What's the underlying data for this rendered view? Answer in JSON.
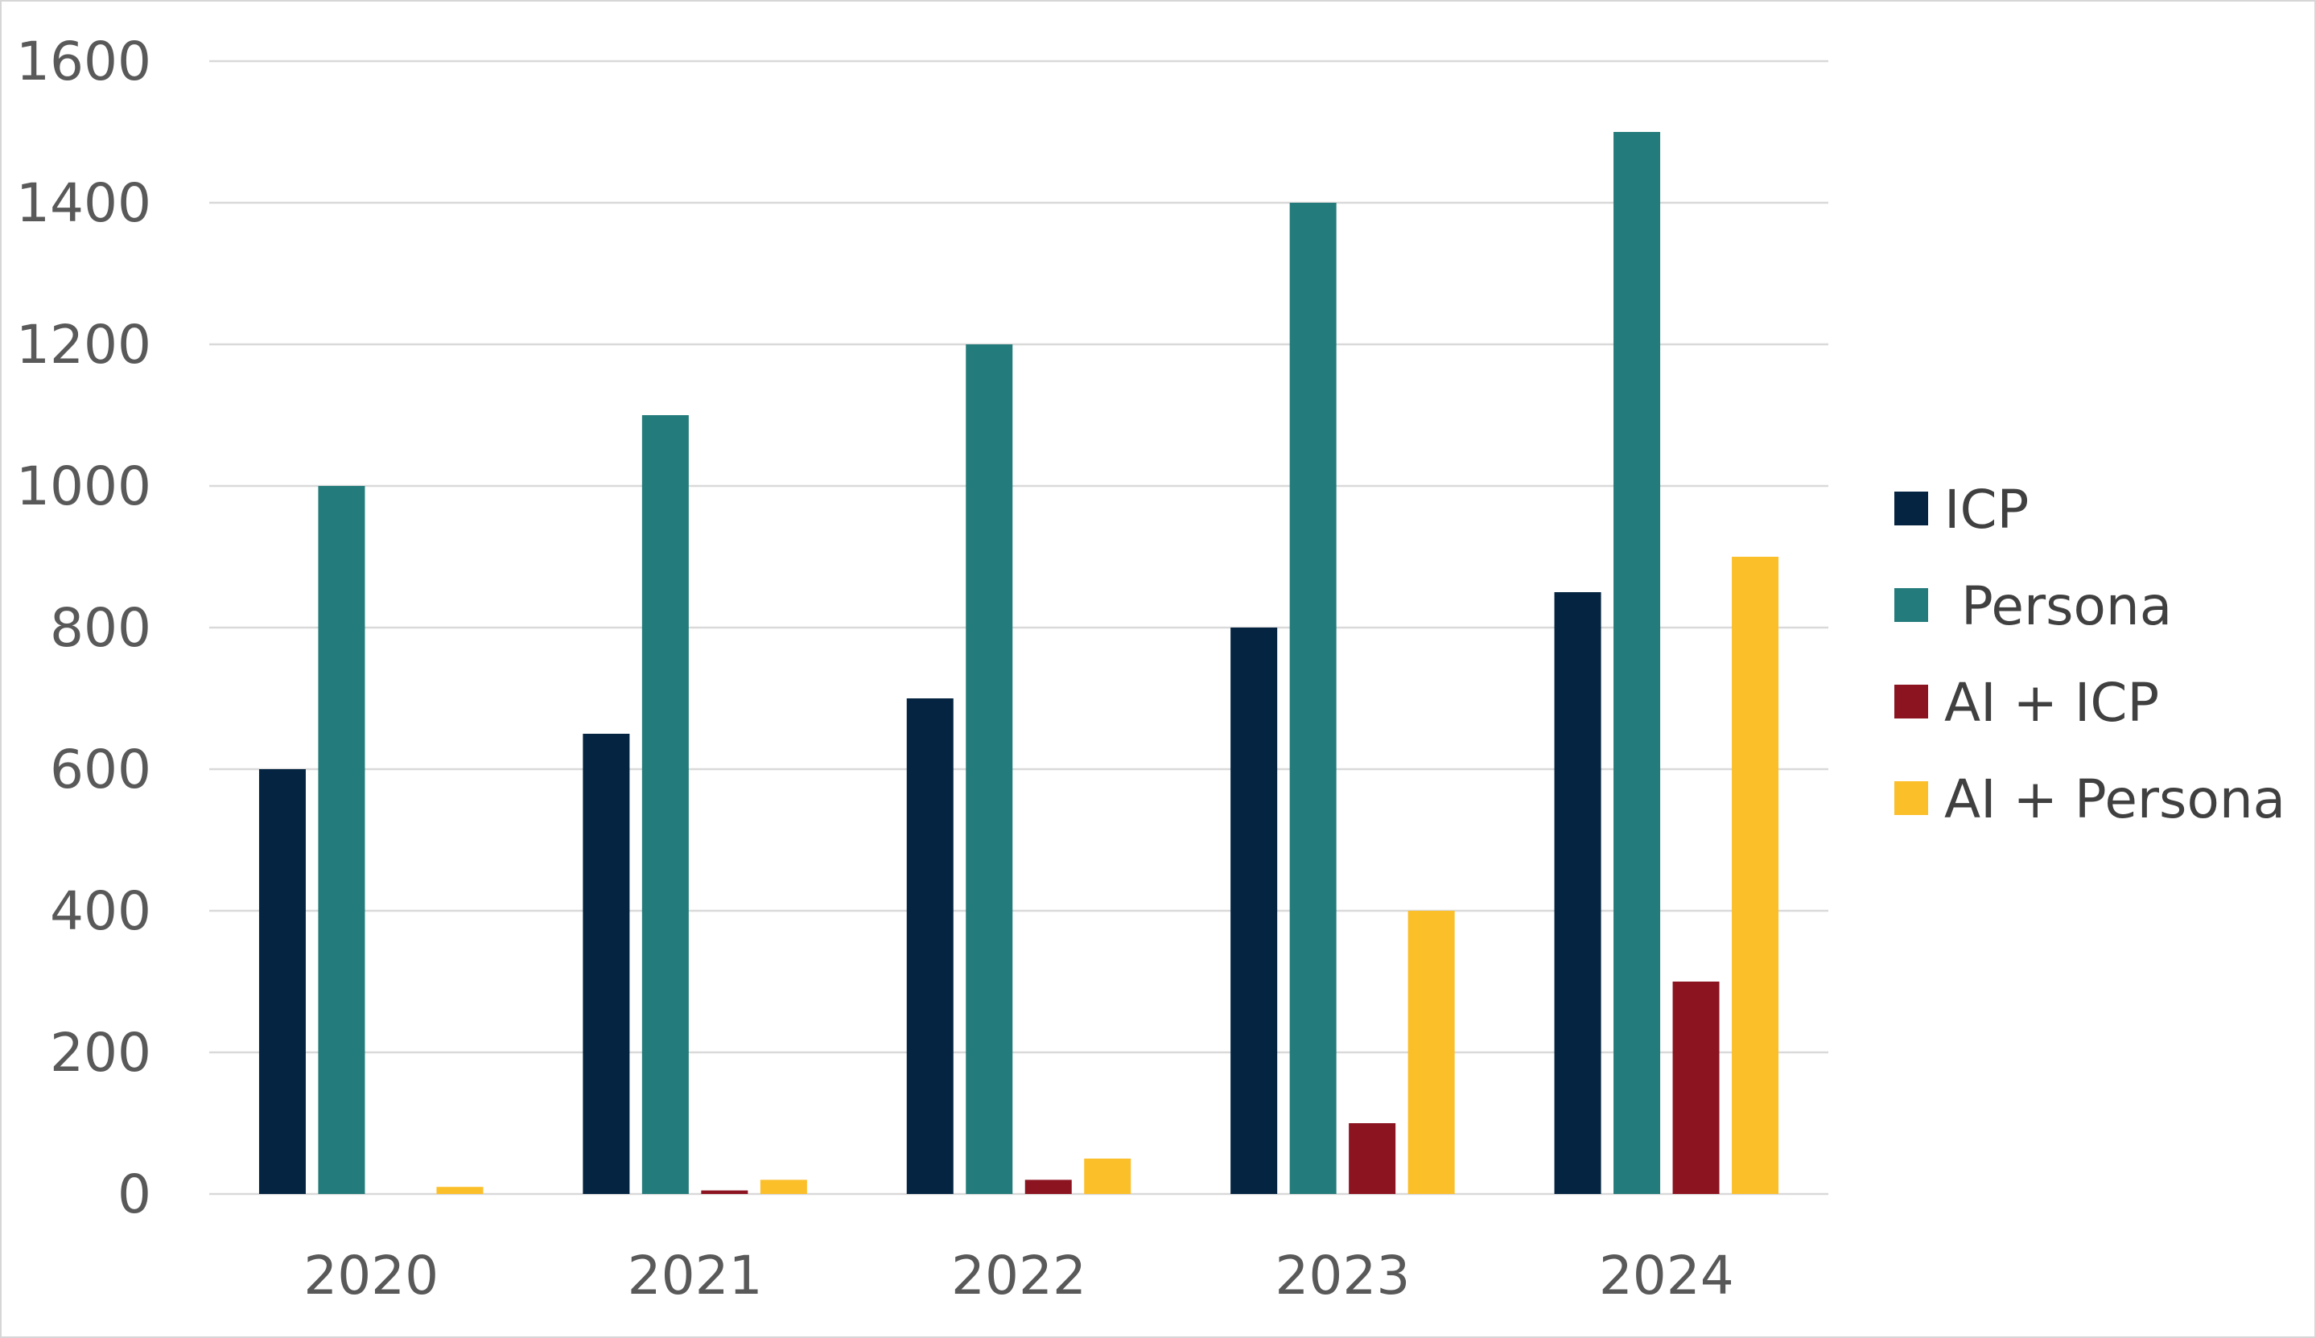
{
  "chart_data": {
    "type": "bar",
    "title": "",
    "xlabel": "",
    "ylabel": "",
    "categories": [
      "2020",
      "2021",
      "2022",
      "2023",
      "2024"
    ],
    "ylim": [
      0,
      1600
    ],
    "yticks": [
      "0",
      "200",
      "400",
      "600",
      "800",
      "1000",
      "1200",
      "1400",
      "1600"
    ],
    "grid": true,
    "legend_position": "right",
    "series": [
      {
        "name": "ICP",
        "color": "#042442",
        "values": [
          600,
          650,
          700,
          800,
          850
        ]
      },
      {
        "name": " Persona",
        "color": "#247b7b",
        "values": [
          1000,
          1100,
          1200,
          1400,
          1500
        ]
      },
      {
        "name": "AI + ICP",
        "color": "#8b1420",
        "values": [
          0,
          5,
          20,
          100,
          300
        ]
      },
      {
        "name": "AI + Persona",
        "color": "#fbbf2a",
        "values": [
          10,
          20,
          50,
          400,
          900
        ]
      }
    ]
  }
}
